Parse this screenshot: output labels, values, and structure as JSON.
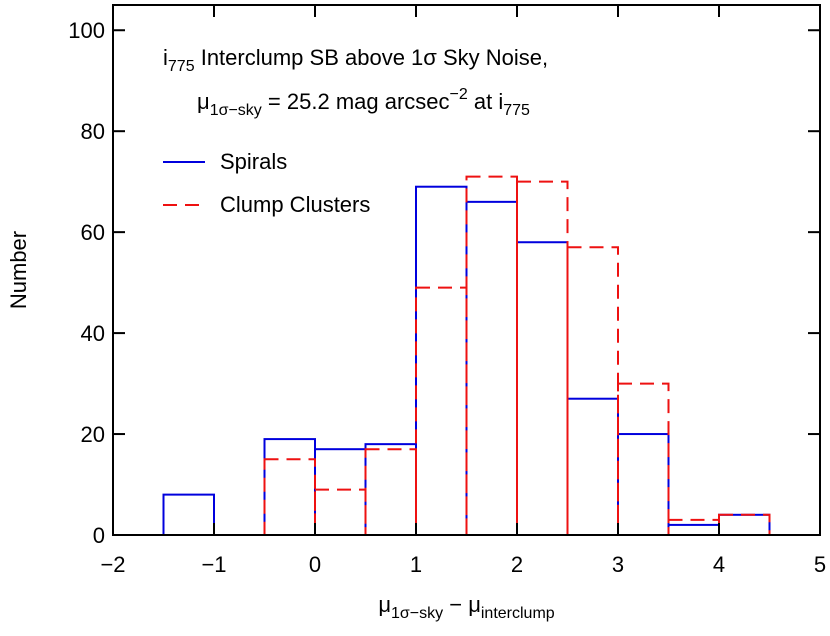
{
  "chart_data": {
    "type": "histogram",
    "annotation": [
      [
        {
          "t": "i"
        },
        {
          "t": "775",
          "shift": "sub"
        },
        {
          "t": " Interclump SB above 1σ Sky Noise,"
        }
      ],
      [
        {
          "t": "μ"
        },
        {
          "t": "1σ−sky",
          "shift": "sub"
        },
        {
          "t": " = 25.2 mag arcsec"
        },
        {
          "t": "−2",
          "shift": "sup"
        },
        {
          "t": " at i"
        },
        {
          "t": "775",
          "shift": "sub"
        }
      ]
    ],
    "xlabel": [
      {
        "t": "μ"
      },
      {
        "t": "1σ−sky",
        "shift": "sub"
      },
      {
        "t": " − μ"
      },
      {
        "t": "interclump",
        "shift": "sub"
      }
    ],
    "ylabel": "Number",
    "bins": [
      -1.5,
      -1,
      -0.5,
      0,
      0.5,
      1,
      1.5,
      2,
      2.5,
      3,
      3.5,
      4,
      4.5
    ],
    "series": [
      {
        "name": "Spirals",
        "color": "#0000dd",
        "linestyle": "solid",
        "values": [
          8,
          0,
          19,
          17,
          18,
          69,
          66,
          58,
          27,
          20,
          2,
          4
        ]
      },
      {
        "name": "Clump Clusters",
        "color": "#ee1111",
        "linestyle": "dashed",
        "values": [
          0,
          0,
          15,
          9,
          17,
          49,
          71,
          70,
          57,
          30,
          3,
          4
        ]
      }
    ],
    "xlim": [
      -2,
      5
    ],
    "ylim": [
      0,
      105
    ],
    "xticks": [
      {
        "value": -2,
        "label": "−2"
      },
      {
        "value": -1,
        "label": "−1"
      },
      0,
      1,
      2,
      3,
      4,
      5
    ],
    "yticks": [
      0,
      20,
      40,
      60,
      80,
      100
    ],
    "legend": "upper-left"
  }
}
